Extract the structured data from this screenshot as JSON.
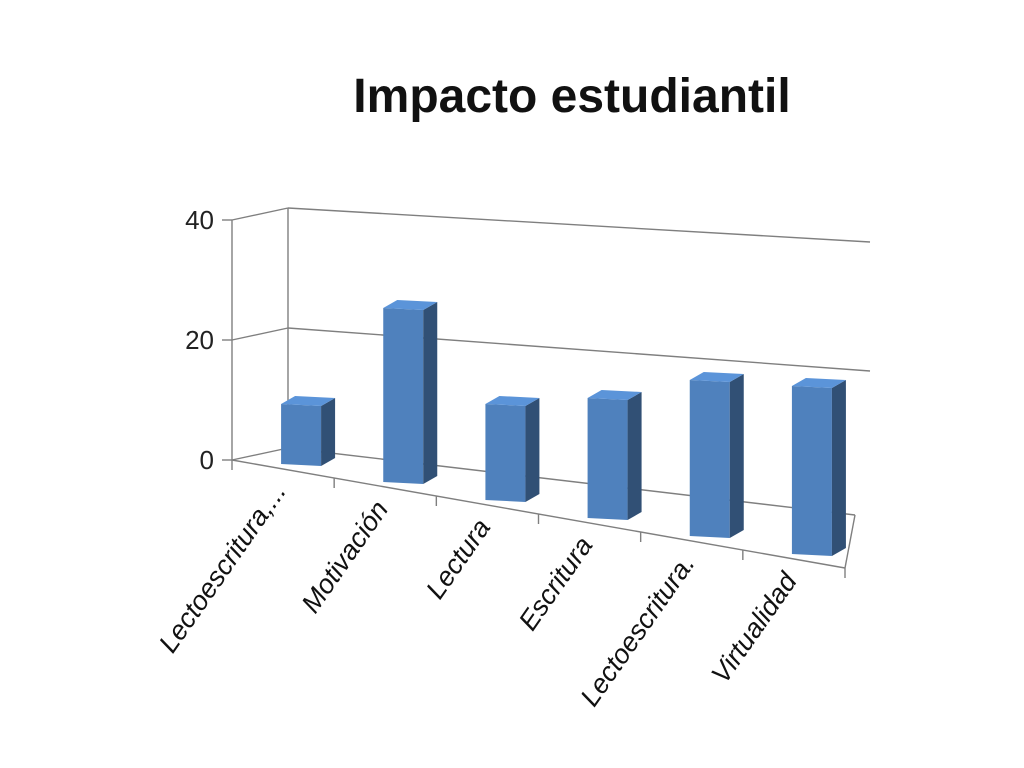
{
  "chart_data": {
    "type": "bar",
    "title": "Impacto estudiantil",
    "categories": [
      "Lectoescritura,...",
      "Motivación",
      "Lectura",
      "Escritura",
      "Lectoescritura.",
      "Virtualidad"
    ],
    "series": [
      {
        "values": [
          10,
          29,
          16,
          20,
          26,
          28
        ]
      }
    ],
    "ylim": [
      0,
      40
    ],
    "yticks": [
      0,
      20,
      40
    ],
    "grid": true,
    "style": "3d-column",
    "bar_color": "#4f81bd"
  }
}
